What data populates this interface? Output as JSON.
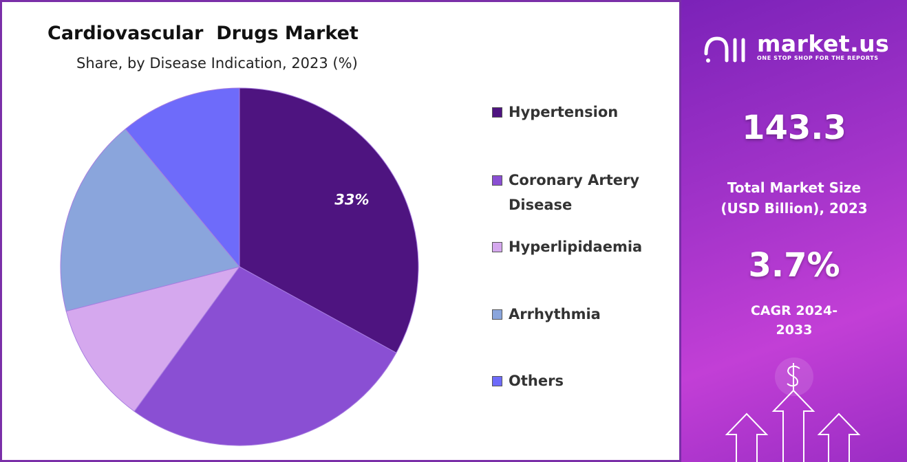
{
  "chart_data": {
    "type": "pie",
    "title": "Cardiovascular  Drugs Market",
    "subtitle": "Share, by Disease Indication, 2023 (%)",
    "categories": [
      "Hypertension",
      "Coronary Artery Disease",
      "Hyperlipidaemia",
      "Arrhythmia",
      "Others"
    ],
    "values": [
      33,
      27,
      11,
      18,
      11
    ],
    "value_labels": [
      "33%",
      null,
      null,
      null,
      null
    ],
    "colors": [
      "#4e1480",
      "#8a4fd3",
      "#d5a8ee",
      "#8aa5dc",
      "#6e6bfa"
    ],
    "legend": "right"
  },
  "panel": {
    "brand": "market.us",
    "tagline": "ONE STOP SHOP FOR THE REPORTS",
    "market_size": "143.3",
    "market_size_label": "Total Market Size (USD Billion), 2023",
    "cagr": "3.7%",
    "cagr_label": "CAGR 2024-2033"
  }
}
